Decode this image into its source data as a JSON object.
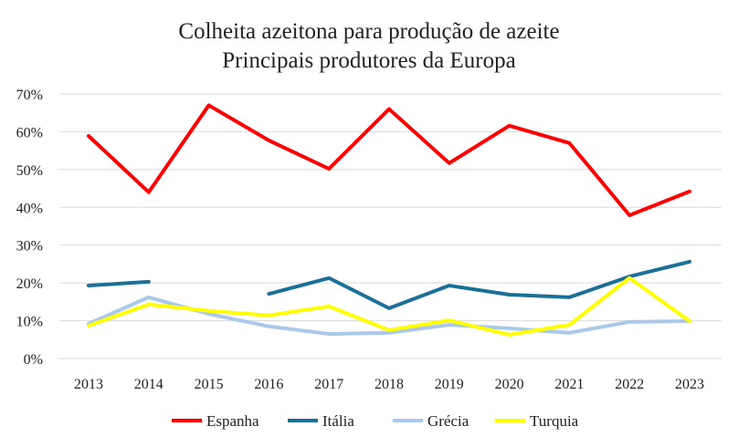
{
  "chart_data": {
    "type": "line",
    "title": "Colheita azeitona para produção de azeite",
    "subtitle": "Principais produtores da Europa",
    "xlabel": "",
    "ylabel": "",
    "x": [
      "2013",
      "2014",
      "2015",
      "2016",
      "2017",
      "2018",
      "2019",
      "2020",
      "2021",
      "2022",
      "2023"
    ],
    "ylim": [
      0,
      70
    ],
    "yticks": [
      0,
      10,
      20,
      30,
      40,
      50,
      60,
      70
    ],
    "ytick_labels": [
      "0%",
      "10%",
      "20%",
      "30%",
      "40%",
      "50%",
      "60%",
      "70%"
    ],
    "grid": true,
    "legend_position": "bottom",
    "series": [
      {
        "name": "Espanha",
        "color": "#ff0000",
        "values": [
          58.9,
          44.0,
          67.0,
          57.7,
          50.2,
          66.0,
          51.7,
          61.6,
          57.0,
          37.9,
          44.2
        ]
      },
      {
        "name": "Itália",
        "color": "#1a7096",
        "values": [
          19.3,
          20.3,
          null,
          17.1,
          21.3,
          13.3,
          19.3,
          16.9,
          16.2,
          21.7,
          25.6
        ]
      },
      {
        "name": "Grécia",
        "color": "#a9c8ea",
        "values": [
          9.2,
          16.2,
          11.8,
          8.5,
          6.5,
          6.8,
          8.9,
          8.0,
          6.8,
          9.7,
          9.9
        ]
      },
      {
        "name": "Turquia",
        "color": "#ffff00",
        "values": [
          8.7,
          14.3,
          12.6,
          11.4,
          13.8,
          7.5,
          10.1,
          6.3,
          8.9,
          21.3,
          9.9
        ]
      }
    ]
  }
}
